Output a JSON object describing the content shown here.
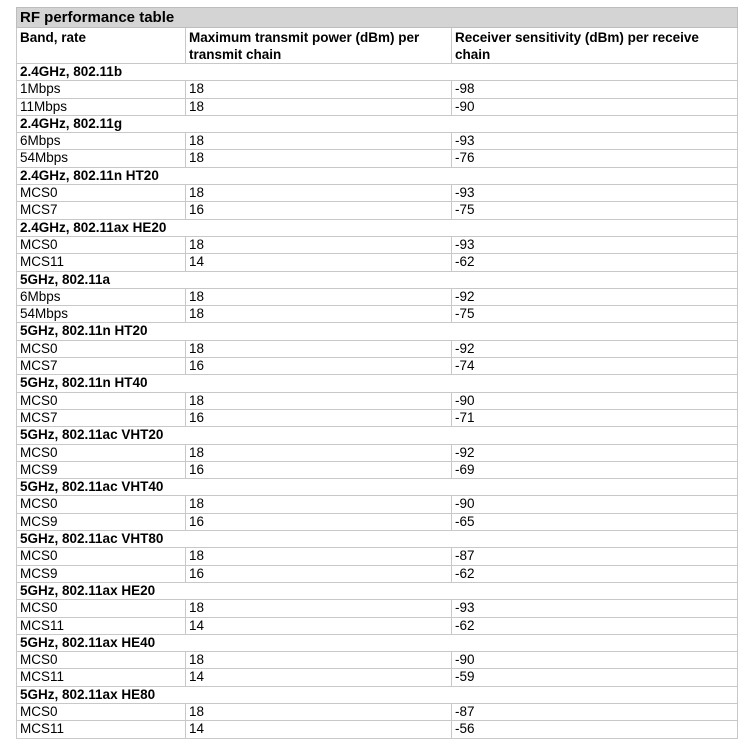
{
  "title": "RF performance table",
  "headers": [
    "Band, rate",
    "Maximum transmit power (dBm) per transmit chain",
    "Receiver sensitivity (dBm) per receive chain"
  ],
  "groups": [
    {
      "name": "2.4GHz, 802.11b",
      "rows": [
        [
          "1Mbps",
          "18",
          "-98"
        ],
        [
          "11Mbps",
          "18",
          "-90"
        ]
      ]
    },
    {
      "name": "2.4GHz, 802.11g",
      "rows": [
        [
          "6Mbps",
          "18",
          "-93"
        ],
        [
          "54Mbps",
          "18",
          "-76"
        ]
      ]
    },
    {
      "name": "2.4GHz, 802.11n HT20",
      "rows": [
        [
          "MCS0",
          "18",
          "-93"
        ],
        [
          "MCS7",
          "16",
          "-75"
        ]
      ]
    },
    {
      "name": "2.4GHz, 802.11ax HE20",
      "rows": [
        [
          "MCS0",
          "18",
          "-93"
        ],
        [
          "MCS11",
          "14",
          "-62"
        ]
      ]
    },
    {
      "name": "5GHz, 802.11a",
      "rows": [
        [
          "6Mbps",
          "18",
          "-92"
        ],
        [
          "54Mbps",
          "18",
          "-75"
        ]
      ]
    },
    {
      "name": "5GHz, 802.11n HT20",
      "rows": [
        [
          "MCS0",
          "18",
          "-92"
        ],
        [
          "MCS7",
          "16",
          "-74"
        ]
      ]
    },
    {
      "name": "5GHz, 802.11n HT40",
      "rows": [
        [
          "MCS0",
          "18",
          "-90"
        ],
        [
          "MCS7",
          "16",
          "-71"
        ]
      ]
    },
    {
      "name": "5GHz, 802.11ac VHT20",
      "rows": [
        [
          "MCS0",
          "18",
          "-92"
        ],
        [
          "MCS9",
          "16",
          "-69"
        ]
      ]
    },
    {
      "name": "5GHz, 802.11ac VHT40",
      "rows": [
        [
          "MCS0",
          "18",
          "-90"
        ],
        [
          "MCS9",
          "16",
          "-65"
        ]
      ]
    },
    {
      "name": "5GHz, 802.11ac VHT80",
      "rows": [
        [
          "MCS0",
          "18",
          "-87"
        ],
        [
          "MCS9",
          "16",
          "-62"
        ]
      ]
    },
    {
      "name": "5GHz, 802.11ax HE20",
      "rows": [
        [
          "MCS0",
          "18",
          "-93"
        ],
        [
          "MCS11",
          "14",
          "-62"
        ]
      ]
    },
    {
      "name": "5GHz, 802.11ax HE40",
      "rows": [
        [
          "MCS0",
          "18",
          "-90"
        ],
        [
          "MCS11",
          "14",
          "-59"
        ]
      ]
    },
    {
      "name": "5GHz, 802.11ax HE80",
      "rows": [
        [
          "MCS0",
          "18",
          "-87"
        ],
        [
          "MCS11",
          "14",
          "-56"
        ]
      ]
    }
  ]
}
